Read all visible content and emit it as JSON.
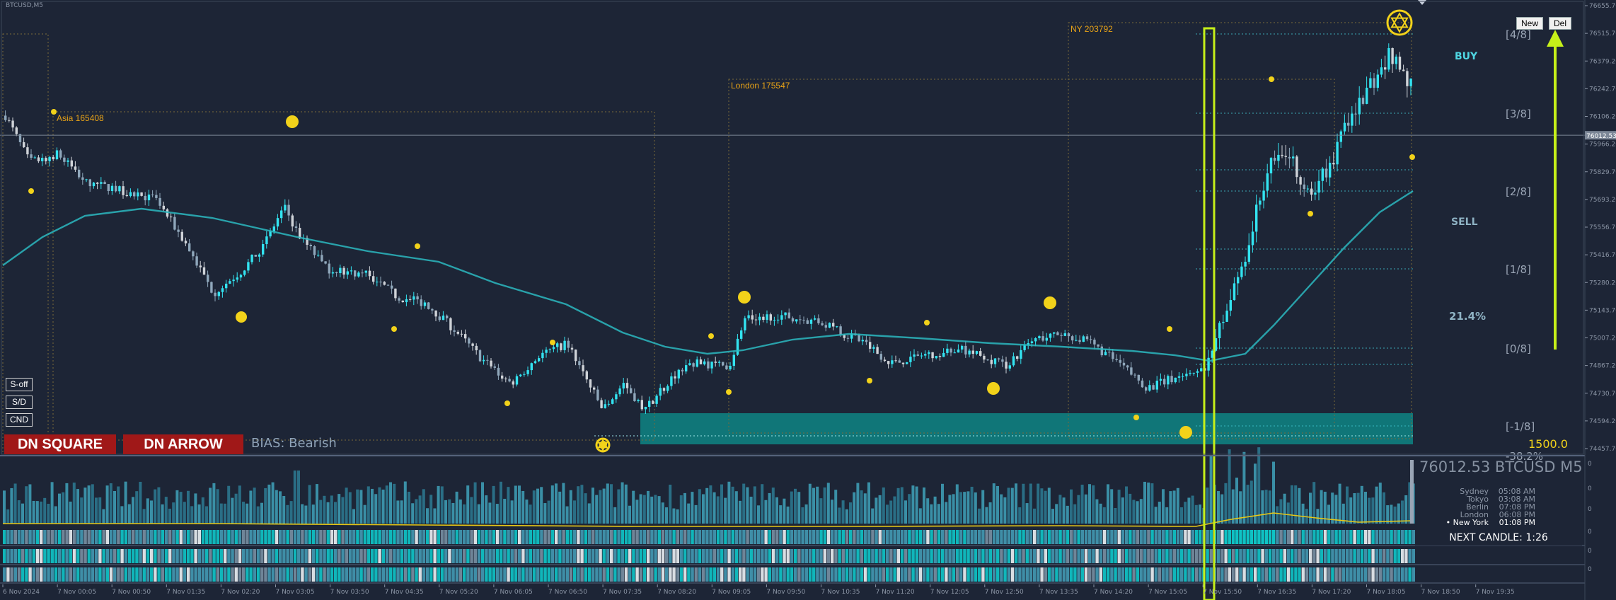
{
  "window": {
    "symbol_label": "BTCUSD,M5"
  },
  "price_axis": {
    "labels": [
      "76655.70",
      "76515.70",
      "76379.20",
      "76242.70",
      "76106.20",
      "75966.20",
      "75829.70",
      "75693.20",
      "75556.70",
      "75416.70",
      "75280.20",
      "75143.70",
      "75007.20",
      "74867.20",
      "74730.70",
      "74594.20",
      "74457.70"
    ],
    "current_price_tag": "76012.53"
  },
  "time_axis": {
    "labels": [
      "6 Nov 2024",
      "7 Nov 00:05",
      "7 Nov 00:50",
      "7 Nov 01:35",
      "7 Nov 02:20",
      "7 Nov 03:05",
      "7 Nov 03:50",
      "7 Nov 04:35",
      "7 Nov 05:20",
      "7 Nov 06:05",
      "7 Nov 06:50",
      "7 Nov 07:35",
      "7 Nov 08:20",
      "7 Nov 09:05",
      "7 Nov 09:50",
      "7 Nov 10:35",
      "7 Nov 11:20",
      "7 Nov 12:05",
      "7 Nov 12:50",
      "7 Nov 13:35",
      "7 Nov 14:20",
      "7 Nov 15:05",
      "7 Nov 15:50",
      "7 Nov 16:35",
      "7 Nov 17:20",
      "7 Nov 18:05",
      "7 Nov 18:50",
      "7 Nov 19:35"
    ]
  },
  "sessions": {
    "asia": "Asia 165408",
    "london": "London 175547",
    "ny": "NY 203792"
  },
  "murrey": {
    "levels": [
      "[4/8]",
      "[3/8]",
      "[2/8]",
      "[1/8]",
      "[0/8]",
      "[-1/8]",
      "-38.2%"
    ],
    "buy_label": "BUY",
    "sell_label": "SELL",
    "percent_label": "21.4%",
    "range_value": "1500.0"
  },
  "buttons": {
    "new": "New",
    "del": "Del",
    "s_off": "S-off",
    "sd": "S/D",
    "cnd": "CND"
  },
  "signals": {
    "square": "DN SQUARE",
    "arrow": "DN ARROW",
    "bias": "BIAS: Bearish"
  },
  "info_panel": {
    "title": "76012.53 BTCUSD M5",
    "clocks": [
      {
        "city": "Sydney",
        "time": "05:08 AM"
      },
      {
        "city": "Tokyo",
        "time": "03:08 AM"
      },
      {
        "city": "Berlin",
        "time": "07:08 PM"
      },
      {
        "city": "London",
        "time": "06:08 PM"
      },
      {
        "city": "• New York",
        "time": "01:08 PM"
      }
    ],
    "next_candle": "NEXT CANDLE: 1:26"
  },
  "colors": {
    "background": "#1d2536",
    "bull": "#33e3f0",
    "bear": "#cfd3d8",
    "bear_dark": "#8fa7bb",
    "session_label": "#e8a317",
    "signal_yellow": "#f2d21a",
    "lime": "#c6f019",
    "ma_line": "#2bb8c0",
    "demand_zone": "#0f7f80",
    "red_signal": "#a01818"
  }
}
